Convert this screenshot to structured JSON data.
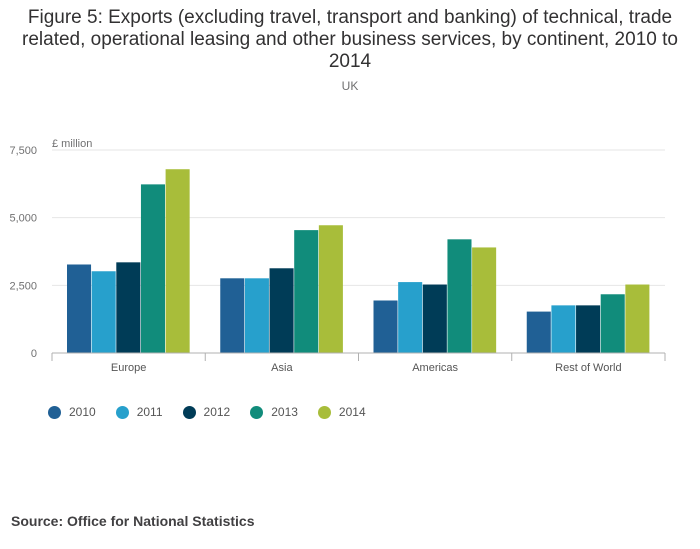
{
  "title": "Figure 5: Exports (excluding travel, transport and banking) of technical, trade related, operational leasing and other business services, by continent, 2010 to 2014",
  "subtitle": "UK",
  "source": "Source: Office for National Statistics",
  "chart_data": {
    "type": "bar",
    "title": "Figure 5: Exports (excluding travel, transport and banking) of technical, trade related, operational leasing and other business services, by continent, 2010 to 2014",
    "subtitle": "UK",
    "ylabel": "£ million",
    "xlabel": "",
    "ylim": [
      0,
      7500
    ],
    "yticks": [
      0,
      2500,
      5000,
      7500
    ],
    "ytick_labels": [
      "0",
      "2,500",
      "5,000",
      "7,500"
    ],
    "grid": true,
    "legend_position": "bottom-left",
    "categories": [
      "Europe",
      "Asia",
      "Americas",
      "Rest of World"
    ],
    "series": [
      {
        "name": "2010",
        "color": "#206095",
        "values": [
          3270,
          2760,
          1940,
          1530
        ]
      },
      {
        "name": "2011",
        "color": "#27a0cc",
        "values": [
          3020,
          2760,
          2620,
          1760
        ]
      },
      {
        "name": "2012",
        "color": "#003c57",
        "values": [
          3350,
          3130,
          2530,
          1760
        ]
      },
      {
        "name": "2013",
        "color": "#118c7b",
        "values": [
          6230,
          4540,
          4200,
          2170
        ]
      },
      {
        "name": "2014",
        "color": "#a8bd3a",
        "values": [
          6790,
          4720,
          3900,
          2530
        ]
      }
    ]
  }
}
